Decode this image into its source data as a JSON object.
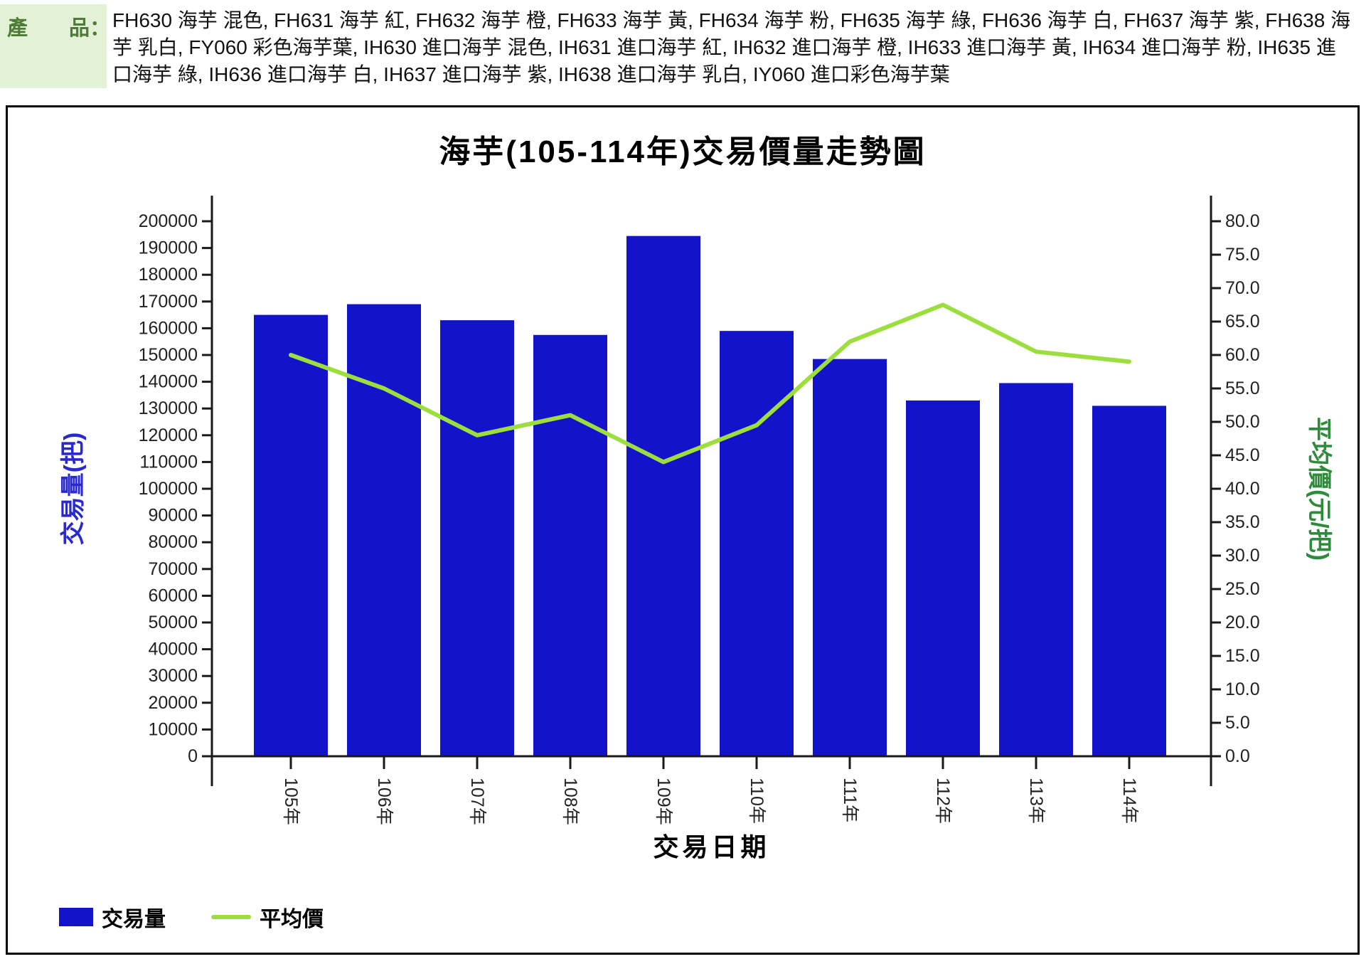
{
  "header": {
    "label": "產　　品：",
    "products": "FH630 海芋 混色, FH631 海芋 紅, FH632 海芋 橙, FH633 海芋 黃, FH634 海芋 粉, FH635 海芋 綠, FH636 海芋 白, FH637 海芋 紫, FH638 海芋 乳白, FY060 彩色海芋葉, IH630 進口海芋 混色, IH631 進口海芋 紅, IH632 進口海芋 橙, IH633 進口海芋 黃, IH634 進口海芋 粉, IH635 進口海芋 綠, IH636 進口海芋 白, IH637 進口海芋 紫, IH638 進口海芋 乳白, IY060 進口彩色海芋葉"
  },
  "colors": {
    "bar_blue": "#1313CA",
    "line_green": "#9CDE3E",
    "left_axis_label_blue": "#2929CC",
    "right_axis_label_green": "#2E8B3C",
    "tick_text": "#222222",
    "axis_line": "#1a1a1a",
    "header_bg": "#E3F1D6",
    "header_text": "#4E7C38",
    "frame_border": "#000000"
  },
  "chart_data": {
    "type": "combo",
    "title": "海芋(105-114年)交易價量走勢圖",
    "xlabel": "交易日期",
    "ylabel_left": "交易量(把)",
    "ylabel_right": "平均價(元/把)",
    "categories": [
      "105年",
      "106年",
      "107年",
      "108年",
      "109年",
      "110年",
      "111年",
      "112年",
      "113年",
      "114年"
    ],
    "series": [
      {
        "name": "交易量",
        "type": "bar",
        "axis": "left",
        "color": "#1313CA",
        "values": [
          165000,
          169000,
          163000,
          157500,
          194500,
          159000,
          148500,
          133000,
          139500,
          131000
        ]
      },
      {
        "name": "平均價",
        "type": "line",
        "axis": "right",
        "color": "#9CDE3E",
        "values": [
          60.0,
          55.0,
          48.0,
          51.0,
          44.0,
          49.5,
          62.0,
          67.5,
          60.5,
          59.0
        ]
      }
    ],
    "y_left": {
      "min": 0,
      "max": 200000,
      "step": 10000,
      "tick_labels": [
        "0",
        "10000",
        "20000",
        "30000",
        "40000",
        "50000",
        "60000",
        "70000",
        "80000",
        "90000",
        "100000",
        "110000",
        "120000",
        "130000",
        "140000",
        "150000",
        "160000",
        "170000",
        "180000",
        "190000",
        "200000"
      ]
    },
    "y_right": {
      "min": 0,
      "max": 80,
      "step": 5,
      "tick_labels": [
        "0.0",
        "5.0",
        "10.0",
        "15.0",
        "20.0",
        "25.0",
        "30.0",
        "35.0",
        "40.0",
        "45.0",
        "50.0",
        "55.0",
        "60.0",
        "65.0",
        "70.0",
        "75.0",
        "80.0"
      ]
    },
    "legend_position": "bottom-left",
    "grid": false
  }
}
